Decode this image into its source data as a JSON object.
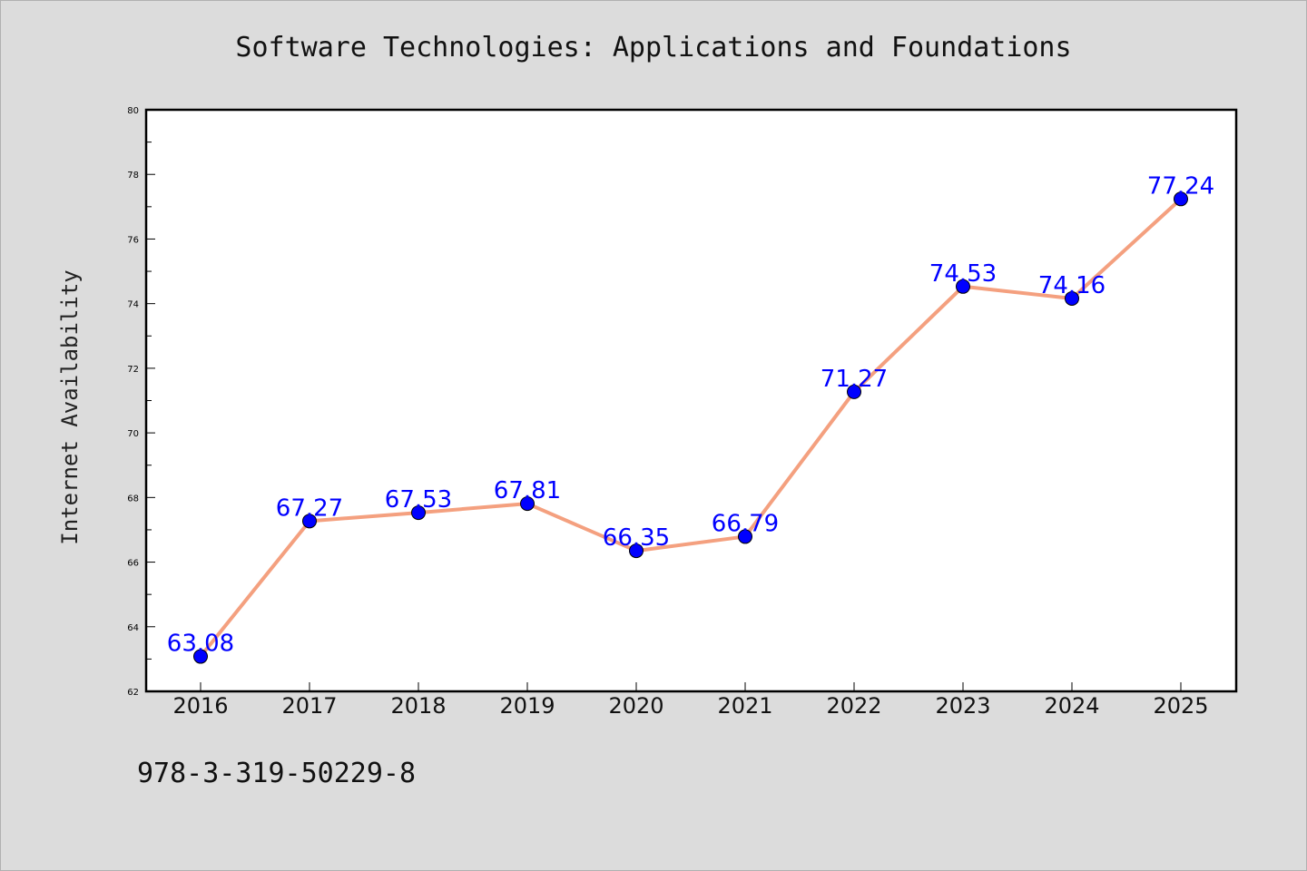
{
  "chart_data": {
    "type": "line",
    "title": "Software Technologies: Applications and Foundations",
    "xlabel": "",
    "ylabel": "Internet Availability",
    "x": [
      "2016",
      "2017",
      "2018",
      "2019",
      "2020",
      "2021",
      "2022",
      "2023",
      "2024",
      "2025"
    ],
    "series": [
      {
        "values": [
          63.08,
          67.27,
          67.53,
          67.81,
          66.35,
          66.79,
          71.27,
          74.53,
          74.16,
          77.24
        ],
        "labels": [
          "63.08",
          "67.27",
          "67.53",
          "67.81",
          "66.35",
          "66.79",
          "71.27",
          "74.53",
          "74.16",
          "77.24"
        ],
        "line_color": "#f4a07f",
        "marker_color": "#0000ff"
      }
    ],
    "ylim": [
      62,
      80
    ],
    "yticks": [
      "62",
      "64",
      "66",
      "68",
      "70",
      "72",
      "74",
      "76",
      "78",
      "80"
    ],
    "grid": false,
    "legend": "none"
  },
  "footer": {
    "isbn": "978-3-319-50229-8"
  }
}
